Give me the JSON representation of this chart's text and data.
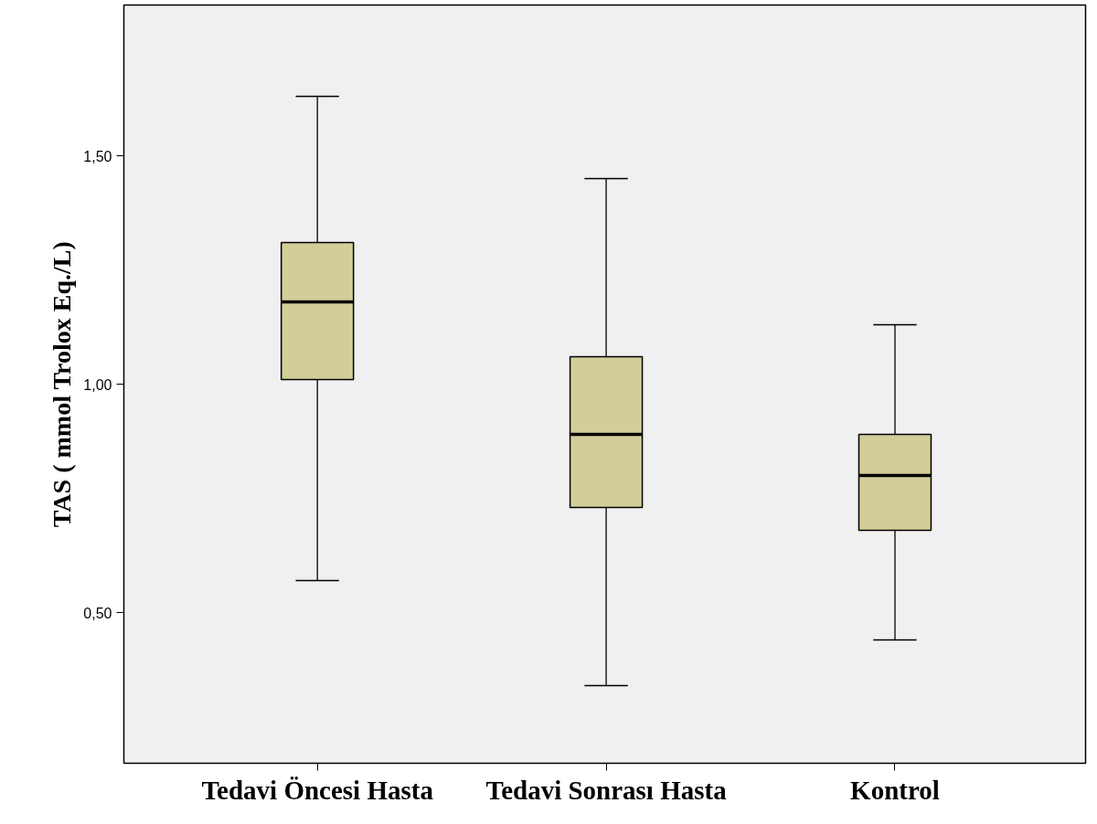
{
  "chart_data": {
    "type": "box",
    "ylabel": "TAS ( mmol Trolox Eq./L)",
    "categories": [
      "Tedavi Öncesi Hasta",
      "Tedavi Sonrası Hasta",
      "Kontrol"
    ],
    "color": "#d3ce99",
    "boxes": [
      {
        "low": 0.57,
        "q1": 1.01,
        "median": 1.18,
        "q3": 1.31,
        "high": 1.63
      },
      {
        "low": 0.34,
        "q1": 0.73,
        "median": 0.89,
        "q3": 1.06,
        "high": 1.45
      },
      {
        "low": 0.44,
        "q1": 0.68,
        "median": 0.8,
        "q3": 0.89,
        "high": 1.13
      }
    ],
    "ylim": [
      0.17,
      1.83
    ],
    "yticks": [
      {
        "value": 0.5,
        "label": "0,50"
      },
      {
        "value": 1.0,
        "label": "1,00"
      },
      {
        "value": 1.5,
        "label": "1,50"
      }
    ],
    "grid": false
  }
}
